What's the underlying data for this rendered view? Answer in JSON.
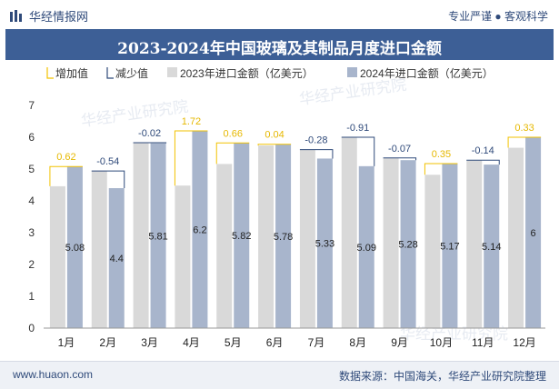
{
  "header": {
    "brand": "华经情报网",
    "tagline": "专业严谨 ● 客观科学"
  },
  "footer": {
    "website": "www.huaon.com",
    "source": "数据来源：中国海关，华经产业研究院整理"
  },
  "watermark": "华经产业研究院",
  "colors": {
    "bar2023": "#d9d9d9",
    "bar2024": "#a8b5cc",
    "increase": "#f2c200",
    "decrease": "#2f4a7a",
    "increaseLabel": "#e6b800",
    "decreaseLabel": "#2f4a7a"
  },
  "chart_data": {
    "type": "bar",
    "title": "2023-2024年中国玻璃及其制品月度进口金额",
    "legend": [
      "增加值",
      "减少值",
      "2023年进口金额（亿美元）",
      "2024年进口金额（亿美元）"
    ],
    "legend_position": "top-left",
    "categories": [
      "1月",
      "2月",
      "3月",
      "4月",
      "5月",
      "6月",
      "7月",
      "8月",
      "9月",
      "10月",
      "11月",
      "12月"
    ],
    "series": [
      {
        "name": "2023年进口金额（亿美元）",
        "values": [
          4.46,
          4.94,
          5.83,
          4.48,
          5.16,
          5.74,
          5.61,
          6.0,
          5.35,
          4.82,
          5.28,
          5.67
        ]
      },
      {
        "name": "2024年进口金额（亿美元）",
        "values": [
          5.08,
          4.4,
          5.81,
          6.2,
          5.82,
          5.78,
          5.33,
          5.09,
          5.28,
          5.17,
          5.14,
          6.0
        ]
      }
    ],
    "change_labels": [
      "0.62",
      "-0.54",
      "-0.02",
      "1.72",
      "0.66",
      "0.04",
      "-0.28",
      "-0.91",
      "-0.07",
      "0.35",
      "-0.14",
      "0.33"
    ],
    "value_labels_2024": [
      "5.08",
      "4.4",
      "5.81",
      "6.2",
      "5.82",
      "5.78",
      "5.33",
      "5.09",
      "5.28",
      "5.17",
      "5.14",
      "6"
    ],
    "ylim": [
      0,
      7
    ],
    "yticks": [
      "0",
      "1",
      "2",
      "3",
      "4",
      "5",
      "6",
      "7"
    ],
    "grid": false
  }
}
